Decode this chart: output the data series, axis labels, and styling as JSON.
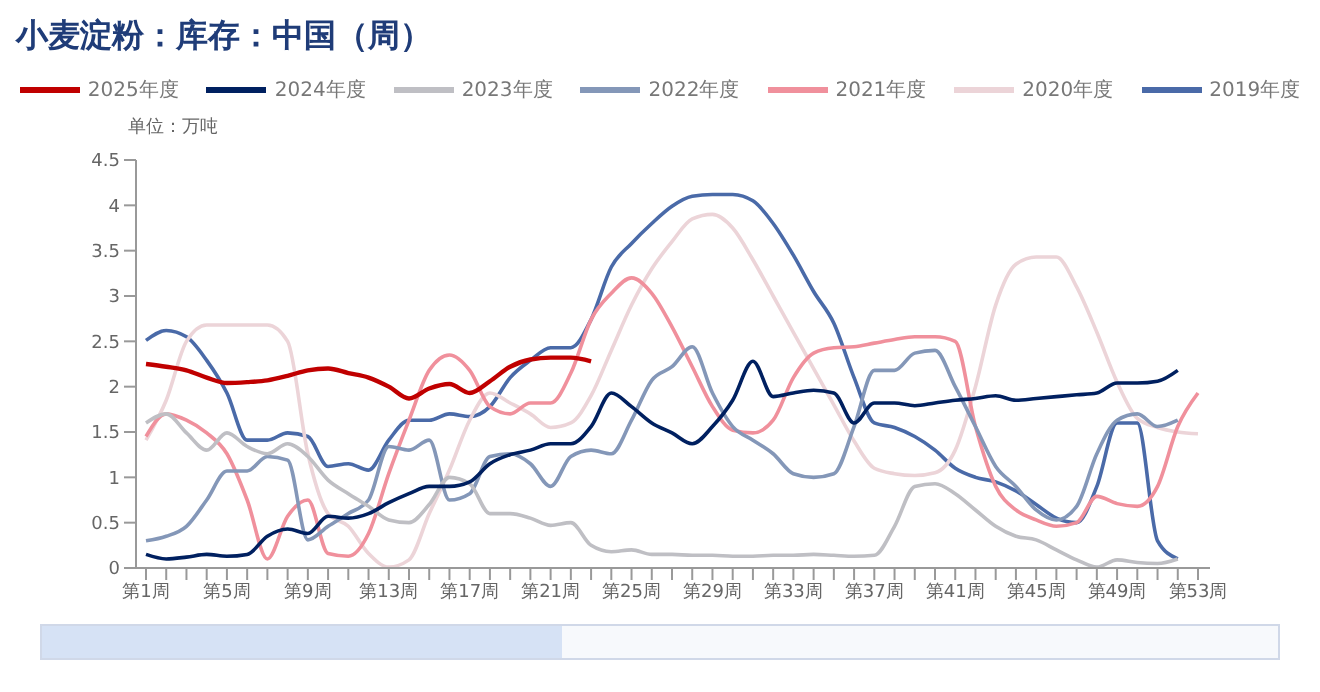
{
  "chart_data": {
    "type": "line",
    "title": "小麦淀粉：库存：中国（周）",
    "ylabel": "单位：万吨",
    "categories": [
      "第1周",
      null,
      null,
      null,
      "第5周",
      null,
      null,
      null,
      "第9周",
      null,
      null,
      null,
      "第13周",
      null,
      null,
      null,
      "第17周",
      null,
      null,
      null,
      "第21周",
      null,
      null,
      null,
      "第25周",
      null,
      null,
      null,
      "第29周",
      null,
      null,
      null,
      "第33周",
      null,
      null,
      null,
      "第37周",
      null,
      null,
      null,
      "第41周",
      null,
      null,
      null,
      "第45周",
      null,
      null,
      null,
      "第49周",
      null,
      null,
      null,
      "第53周"
    ],
    "series": [
      {
        "name": "2025年度",
        "color": "#c00000",
        "values": [
          2.25,
          2.22,
          2.18,
          2.1,
          2.04,
          2.05,
          2.07,
          2.12,
          2.18,
          2.2,
          2.15,
          2.1,
          2.0,
          1.87,
          1.98,
          2.03,
          1.93,
          2.06,
          2.22,
          2.3,
          2.32,
          2.32,
          2.28,
          null,
          null,
          null,
          null,
          null,
          null,
          null,
          null,
          null,
          null,
          null,
          null,
          null,
          null,
          null,
          null,
          null,
          null,
          null,
          null,
          null,
          null,
          null,
          null,
          null,
          null,
          null,
          null,
          null,
          null
        ]
      },
      {
        "name": "2024年度",
        "color": "#002060",
        "values": [
          0.15,
          0.1,
          0.12,
          0.15,
          0.13,
          0.15,
          0.35,
          0.43,
          0.38,
          0.57,
          0.55,
          0.6,
          0.72,
          0.82,
          0.9,
          0.9,
          0.95,
          1.15,
          1.25,
          1.3,
          1.37,
          1.37,
          1.56,
          1.93,
          1.78,
          1.6,
          1.49,
          1.37,
          1.56,
          1.85,
          2.28,
          1.89,
          1.93,
          1.96,
          1.93,
          1.6,
          1.82,
          1.82,
          1.79,
          1.82,
          1.85,
          1.87,
          1.9,
          1.85,
          1.87,
          1.89,
          1.91,
          1.93,
          2.04,
          2.04,
          2.06,
          2.18,
          null
        ]
      },
      {
        "name": "2023年度",
        "color": "#bfbfc4",
        "values": [
          1.6,
          1.7,
          1.49,
          1.3,
          1.49,
          1.34,
          1.26,
          1.37,
          1.23,
          0.97,
          0.82,
          0.68,
          0.53,
          0.5,
          0.7,
          1.0,
          0.93,
          0.6,
          0.6,
          0.55,
          0.47,
          0.5,
          0.25,
          0.18,
          0.2,
          0.15,
          0.15,
          0.14,
          0.14,
          0.13,
          0.13,
          0.14,
          0.14,
          0.15,
          0.14,
          0.13,
          0.14,
          0.46,
          0.9,
          0.93,
          0.82,
          0.64,
          0.46,
          0.35,
          0.31,
          0.2,
          0.09,
          0.01,
          0.09,
          0.06,
          0.05,
          0.1,
          null
        ]
      },
      {
        "name": "2022年度",
        "color": "#8497b8",
        "values": [
          0.3,
          0.35,
          0.46,
          0.75,
          1.07,
          1.07,
          1.23,
          1.19,
          0.31,
          0.46,
          0.6,
          0.75,
          1.34,
          1.3,
          1.41,
          0.75,
          0.82,
          1.23,
          1.26,
          1.15,
          0.9,
          1.23,
          1.3,
          1.26,
          1.63,
          2.07,
          2.22,
          2.44,
          1.93,
          1.56,
          1.41,
          1.26,
          1.04,
          1.0,
          1.04,
          1.56,
          2.18,
          2.18,
          2.37,
          2.4,
          2.0,
          1.56,
          1.12,
          0.9,
          0.64,
          0.53,
          0.68,
          1.26,
          1.63,
          1.7,
          1.56,
          1.63,
          null
        ]
      },
      {
        "name": "2021年度",
        "color": "#f0909c",
        "values": [
          1.45,
          1.7,
          1.63,
          1.49,
          1.26,
          0.75,
          0.1,
          0.57,
          0.75,
          0.16,
          0.13,
          0.38,
          1.04,
          1.63,
          2.18,
          2.35,
          2.18,
          1.78,
          1.7,
          1.82,
          1.82,
          2.15,
          2.74,
          3.03,
          3.2,
          3.03,
          2.66,
          2.22,
          1.78,
          1.52,
          1.49,
          1.63,
          2.1,
          2.37,
          2.43,
          2.44,
          2.48,
          2.52,
          2.55,
          2.55,
          2.5,
          1.56,
          0.9,
          0.64,
          0.53,
          0.46,
          0.5,
          0.79,
          0.71,
          0.68,
          0.9,
          1.56,
          1.93
        ]
      },
      {
        "name": "2020年度",
        "color": "#ecd4d8",
        "values": [
          1.41,
          1.85,
          2.5,
          2.68,
          2.68,
          2.68,
          2.68,
          2.5,
          1.26,
          0.6,
          0.46,
          0.16,
          0.01,
          0.09,
          0.6,
          1.08,
          1.63,
          1.93,
          1.82,
          1.7,
          1.55,
          1.6,
          1.9,
          2.4,
          2.9,
          3.3,
          3.6,
          3.85,
          3.9,
          3.75,
          3.4,
          3.0,
          2.6,
          2.2,
          1.8,
          1.4,
          1.1,
          1.04,
          1.02,
          1.05,
          1.3,
          2.0,
          2.9,
          3.35,
          3.43,
          3.43,
          3.1,
          2.6,
          2.05,
          1.65,
          1.55,
          1.5,
          1.48
        ]
      },
      {
        "name": "2019年度",
        "color": "#4a6aa8",
        "values": [
          2.51,
          2.62,
          2.55,
          2.29,
          1.93,
          1.41,
          1.41,
          1.49,
          1.45,
          1.12,
          1.15,
          1.08,
          1.41,
          1.63,
          1.63,
          1.7,
          1.67,
          1.78,
          2.1,
          2.29,
          2.43,
          2.43,
          2.74,
          3.32,
          3.58,
          3.8,
          3.99,
          4.1,
          4.12,
          4.12,
          4.05,
          3.8,
          3.45,
          3.05,
          2.7,
          2.1,
          1.6,
          1.55,
          1.45,
          1.3,
          1.1,
          1.0,
          0.95,
          0.85,
          0.7,
          0.55,
          0.5,
          0.9,
          1.6,
          1.6,
          0.3,
          0.1,
          null
        ]
      }
    ],
    "ylim": [
      0,
      4.5
    ],
    "yticks": [
      0,
      0.5,
      1,
      1.5,
      2,
      2.5,
      3,
      3.5,
      4,
      4.5
    ],
    "grid": false,
    "legend": "top",
    "marker": "none",
    "line_style": "solid"
  }
}
